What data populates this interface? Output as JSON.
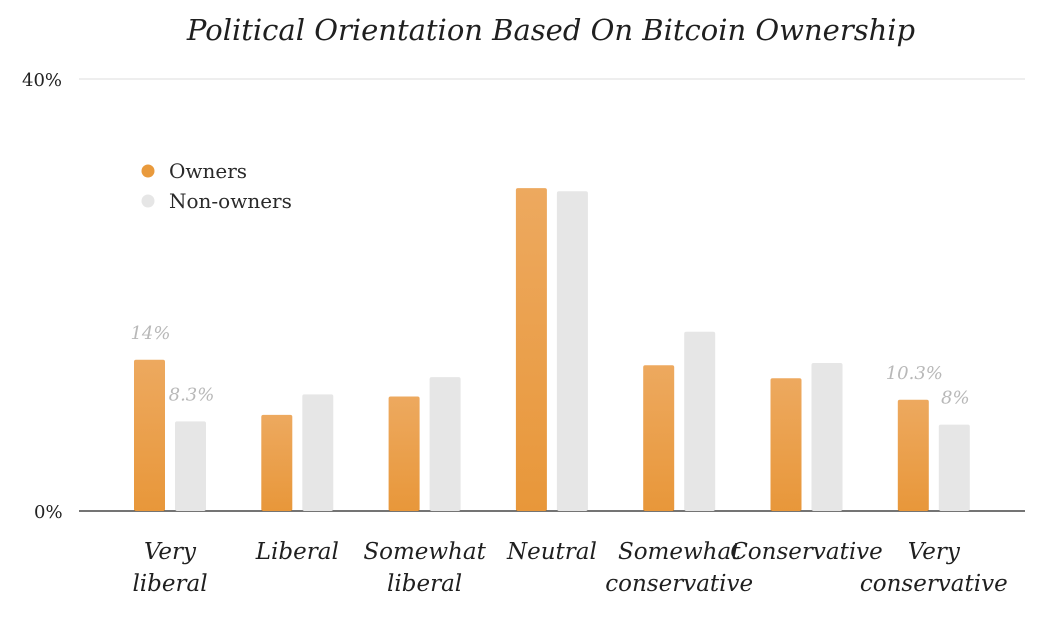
{
  "chart_data": {
    "type": "bar",
    "title": "Political Orientation Based On Bitcoin Ownership",
    "xlabel": "",
    "ylabel": "",
    "ylim": [
      0,
      40
    ],
    "y_ticks": [
      "0%",
      "40%"
    ],
    "grid": "top line only",
    "legend": "top-left",
    "categories": [
      [
        "Very",
        "liberal"
      ],
      [
        "Liberal"
      ],
      [
        "Somewhat",
        "liberal"
      ],
      [
        "Neutral"
      ],
      [
        "Somewhat",
        "conservative"
      ],
      [
        "Conservative"
      ],
      [
        "Very",
        "conservative"
      ]
    ],
    "series": [
      {
        "name": "Owners",
        "color": "#E99A3C",
        "values": [
          14,
          8.9,
          10.6,
          29.9,
          13.5,
          12.3,
          10.3
        ],
        "labels": [
          "14%",
          "",
          "",
          "",
          "",
          "",
          "10.3%"
        ]
      },
      {
        "name": "Non-owners",
        "color": "#E6E6E6",
        "values": [
          8.3,
          10.8,
          12.4,
          29.6,
          16.6,
          13.7,
          8
        ],
        "labels": [
          "8.3%",
          "",
          "",
          "",
          "",
          "",
          "8%"
        ]
      }
    ]
  }
}
